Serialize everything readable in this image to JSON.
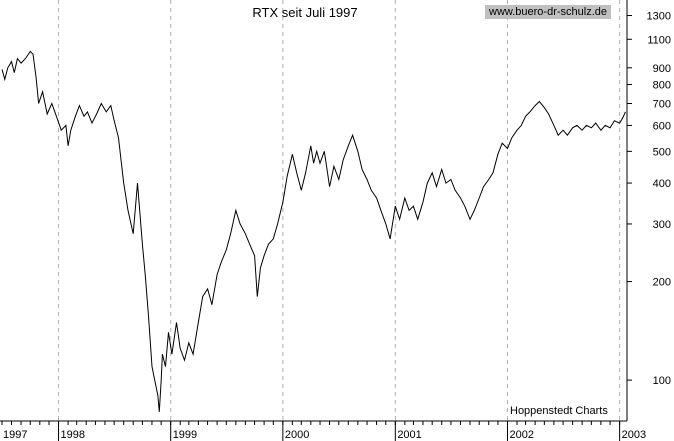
{
  "chart_data": {
    "type": "line",
    "title": "RTX seit Juli 1997",
    "credit": "www.buero-dr-schulz.de",
    "source": "Hoppenstedt Charts",
    "y_scale": "log",
    "ylim": [
      75,
      1450
    ],
    "y_ticks": [
      100,
      200,
      300,
      400,
      500,
      600,
      700,
      800,
      900,
      1100,
      1300
    ],
    "x_ticks": [
      "1997",
      "1998",
      "1999",
      "2000",
      "2001",
      "2002",
      "2003"
    ],
    "xlim": [
      "1997-07-01",
      "2003-01-25"
    ],
    "grid": "vertical-dashed at year starts",
    "colors": {
      "line": "#000000",
      "grid": "#b0b0b0",
      "credit_bg": "#c0c0c0"
    },
    "series": [
      {
        "points": [
          [
            "1997-07-01",
            890
          ],
          [
            "1997-07-10",
            830
          ],
          [
            "1997-07-20",
            900
          ],
          [
            "1997-08-01",
            940
          ],
          [
            "1997-08-10",
            870
          ],
          [
            "1997-08-20",
            960
          ],
          [
            "1997-09-01",
            930
          ],
          [
            "1997-09-15",
            960
          ],
          [
            "1997-10-01",
            1010
          ],
          [
            "1997-10-10",
            990
          ],
          [
            "1997-10-20",
            840
          ],
          [
            "1997-10-28",
            700
          ],
          [
            "1997-11-10",
            760
          ],
          [
            "1997-11-25",
            650
          ],
          [
            "1997-12-10",
            700
          ],
          [
            "1997-12-25",
            640
          ],
          [
            "1998-01-10",
            580
          ],
          [
            "1998-01-25",
            600
          ],
          [
            "1998-02-01",
            520
          ],
          [
            "1998-02-10",
            580
          ],
          [
            "1998-02-25",
            640
          ],
          [
            "1998-03-10",
            690
          ],
          [
            "1998-03-25",
            640
          ],
          [
            "1998-04-05",
            660
          ],
          [
            "1998-04-20",
            610
          ],
          [
            "1998-05-05",
            650
          ],
          [
            "1998-05-20",
            700
          ],
          [
            "1998-06-05",
            660
          ],
          [
            "1998-06-20",
            690
          ],
          [
            "1998-07-01",
            620
          ],
          [
            "1998-07-15",
            550
          ],
          [
            "1998-08-01",
            400
          ],
          [
            "1998-08-15",
            330
          ],
          [
            "1998-09-01",
            280
          ],
          [
            "1998-09-15",
            400
          ],
          [
            "1998-10-01",
            260
          ],
          [
            "1998-10-10",
            210
          ],
          [
            "1998-10-20",
            160
          ],
          [
            "1998-11-01",
            110
          ],
          [
            "1998-11-10",
            100
          ],
          [
            "1998-11-20",
            90
          ],
          [
            "1998-11-25",
            80
          ],
          [
            "1998-12-01",
            100
          ],
          [
            "1998-12-05",
            120
          ],
          [
            "1998-12-15",
            110
          ],
          [
            "1998-12-25",
            140
          ],
          [
            "1999-01-05",
            120
          ],
          [
            "1999-01-20",
            150
          ],
          [
            "1999-02-01",
            125
          ],
          [
            "1999-02-15",
            115
          ],
          [
            "1999-03-01",
            130
          ],
          [
            "1999-03-15",
            120
          ],
          [
            "1999-04-01",
            150
          ],
          [
            "1999-04-15",
            180
          ],
          [
            "1999-05-01",
            190
          ],
          [
            "1999-05-15",
            170
          ],
          [
            "1999-06-01",
            210
          ],
          [
            "1999-06-15",
            230
          ],
          [
            "1999-07-01",
            250
          ],
          [
            "1999-07-15",
            280
          ],
          [
            "1999-08-01",
            330
          ],
          [
            "1999-08-15",
            300
          ],
          [
            "1999-09-01",
            280
          ],
          [
            "1999-09-15",
            260
          ],
          [
            "1999-10-01",
            240
          ],
          [
            "1999-10-10",
            180
          ],
          [
            "1999-10-20",
            220
          ],
          [
            "1999-11-01",
            240
          ],
          [
            "1999-11-15",
            260
          ],
          [
            "1999-12-01",
            270
          ],
          [
            "1999-12-15",
            300
          ],
          [
            "2000-01-01",
            350
          ],
          [
            "2000-01-15",
            420
          ],
          [
            "2000-02-01",
            490
          ],
          [
            "2000-02-15",
            430
          ],
          [
            "2000-03-01",
            380
          ],
          [
            "2000-03-15",
            430
          ],
          [
            "2000-04-01",
            520
          ],
          [
            "2000-04-10",
            460
          ],
          [
            "2000-04-20",
            500
          ],
          [
            "2000-05-01",
            460
          ],
          [
            "2000-05-15",
            500
          ],
          [
            "2000-06-01",
            390
          ],
          [
            "2000-06-15",
            450
          ],
          [
            "2000-07-01",
            410
          ],
          [
            "2000-07-15",
            470
          ],
          [
            "2000-08-01",
            520
          ],
          [
            "2000-08-15",
            560
          ],
          [
            "2000-09-01",
            500
          ],
          [
            "2000-09-15",
            440
          ],
          [
            "2000-10-01",
            410
          ],
          [
            "2000-10-15",
            380
          ],
          [
            "2000-11-01",
            360
          ],
          [
            "2000-11-15",
            330
          ],
          [
            "2000-12-01",
            300
          ],
          [
            "2000-12-15",
            270
          ],
          [
            "2001-01-01",
            340
          ],
          [
            "2001-01-15",
            310
          ],
          [
            "2001-02-01",
            360
          ],
          [
            "2001-02-15",
            330
          ],
          [
            "2001-03-01",
            340
          ],
          [
            "2001-03-15",
            310
          ],
          [
            "2001-04-01",
            350
          ],
          [
            "2001-04-15",
            400
          ],
          [
            "2001-05-01",
            430
          ],
          [
            "2001-05-15",
            390
          ],
          [
            "2001-06-01",
            440
          ],
          [
            "2001-06-15",
            400
          ],
          [
            "2001-07-01",
            410
          ],
          [
            "2001-07-15",
            380
          ],
          [
            "2001-08-01",
            360
          ],
          [
            "2001-08-15",
            340
          ],
          [
            "2001-09-01",
            310
          ],
          [
            "2001-09-15",
            330
          ],
          [
            "2001-10-01",
            360
          ],
          [
            "2001-10-15",
            390
          ],
          [
            "2001-11-01",
            410
          ],
          [
            "2001-11-15",
            430
          ],
          [
            "2001-12-01",
            490
          ],
          [
            "2001-12-15",
            530
          ],
          [
            "2002-01-01",
            510
          ],
          [
            "2002-01-15",
            550
          ],
          [
            "2002-02-01",
            580
          ],
          [
            "2002-02-15",
            600
          ],
          [
            "2002-03-01",
            640
          ],
          [
            "2002-03-15",
            660
          ],
          [
            "2002-04-01",
            690
          ],
          [
            "2002-04-15",
            710
          ],
          [
            "2002-05-01",
            680
          ],
          [
            "2002-05-15",
            650
          ],
          [
            "2002-06-01",
            600
          ],
          [
            "2002-06-15",
            560
          ],
          [
            "2002-07-01",
            580
          ],
          [
            "2002-07-15",
            560
          ],
          [
            "2002-08-01",
            590
          ],
          [
            "2002-08-15",
            600
          ],
          [
            "2002-09-01",
            580
          ],
          [
            "2002-09-15",
            600
          ],
          [
            "2002-10-01",
            590
          ],
          [
            "2002-10-15",
            610
          ],
          [
            "2002-11-01",
            580
          ],
          [
            "2002-11-15",
            600
          ],
          [
            "2002-12-01",
            590
          ],
          [
            "2002-12-15",
            620
          ],
          [
            "2003-01-01",
            610
          ],
          [
            "2003-01-10",
            630
          ],
          [
            "2003-01-20",
            660
          ]
        ]
      }
    ]
  }
}
